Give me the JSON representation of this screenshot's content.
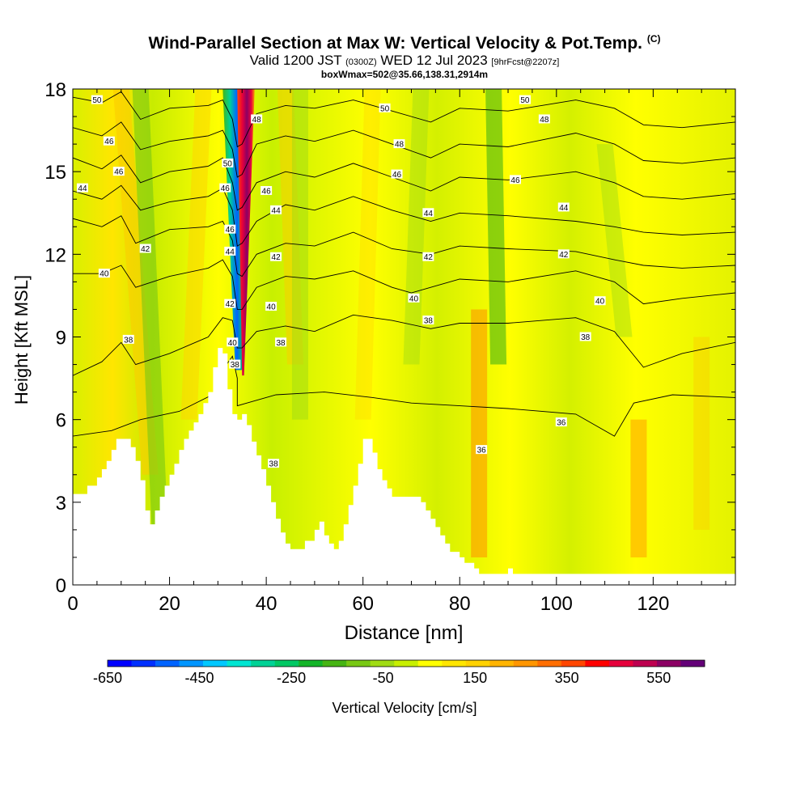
{
  "chart_data": {
    "type": "heatmap",
    "title": "Wind-Parallel Section at Max W: Vertical Velocity & Pot.Temp.",
    "title_mark": "(C)",
    "subtitle": {
      "valid": "Valid 1200 JST",
      "utc": "(0300Z)",
      "date": "WED 12 Jul 2023",
      "fcst": "[9hrFcst@2207z]"
    },
    "box_info": "boxWmax=502@35.66,138.31,2914m",
    "xlabel": "Distance [nm]",
    "ylabel": "Height [Kft MSL]",
    "xlim": [
      0,
      137
    ],
    "ylim": [
      0,
      18
    ],
    "x_ticks": [
      "0",
      "20",
      "40",
      "60",
      "80",
      "100",
      "120"
    ],
    "y_ticks": [
      "0",
      "3",
      "6",
      "9",
      "12",
      "15",
      "18"
    ],
    "colorbar": {
      "label": "Vertical Velocity [cm/s]",
      "range": [
        -650,
        650
      ],
      "tick_labels": [
        "-650",
        "-450",
        "-250",
        "-50",
        "150",
        "350",
        "550"
      ],
      "colors": [
        "#0000ff",
        "#0030ff",
        "#0064ff",
        "#0096ff",
        "#00c8ff",
        "#00e6d2",
        "#00d296",
        "#00c864",
        "#14b428",
        "#46b414",
        "#78c814",
        "#a0dc14",
        "#c8f000",
        "#ffff00",
        "#ffe600",
        "#ffd200",
        "#ffb400",
        "#ff9600",
        "#ff6e00",
        "#ff4600",
        "#ff0000",
        "#e6003c",
        "#be0050",
        "#8c0064",
        "#640078"
      ]
    },
    "theta_contours": [
      {
        "label": "36",
        "x": [
          0,
          8,
          14,
          22,
          30,
          31,
          33,
          34,
          34,
          36,
          42,
          52,
          62,
          70,
          80,
          90,
          104,
          112,
          116,
          124,
          137
        ],
        "y": [
          5.4,
          5.6,
          6.0,
          6.3,
          7.0,
          7.8,
          8.3,
          7.5,
          6.5,
          6.6,
          6.9,
          7.0,
          6.8,
          6.6,
          6.5,
          6.4,
          6.2,
          5.4,
          6.6,
          6.9,
          6.8
        ]
      },
      {
        "label": "38",
        "x": [
          0,
          6,
          10,
          13,
          20,
          28,
          31,
          33,
          34,
          35,
          38,
          44,
          50,
          58,
          66,
          74,
          80,
          90,
          104,
          112,
          118,
          126,
          137
        ],
        "y": [
          7.6,
          8.1,
          8.8,
          8.0,
          8.4,
          9.0,
          9.7,
          9.6,
          8.6,
          8.6,
          9.2,
          9.4,
          9.2,
          9.8,
          9.6,
          9.3,
          9.5,
          9.5,
          9.7,
          9.2,
          7.9,
          8.4,
          8.8
        ]
      },
      {
        "label": "40",
        "x": [
          0,
          6,
          10,
          13,
          20,
          28,
          31,
          33,
          34,
          35,
          38,
          44,
          50,
          58,
          66,
          70,
          74,
          80,
          90,
          104,
          112,
          118,
          126,
          137
        ],
        "y": [
          11.3,
          11.3,
          11.6,
          10.8,
          11.2,
          11.5,
          11.8,
          11.2,
          10.0,
          10.0,
          10.8,
          11.2,
          11.1,
          11.4,
          10.8,
          10.6,
          10.8,
          11.1,
          11.0,
          11.4,
          11.0,
          10.2,
          10.4,
          10.6
        ]
      },
      {
        "label": "42",
        "x": [
          0,
          6,
          10,
          13,
          20,
          28,
          31,
          33,
          34,
          35,
          38,
          44,
          50,
          58,
          66,
          74,
          80,
          90,
          104,
          112,
          118,
          126,
          137
        ],
        "y": [
          13.3,
          13.0,
          13.4,
          12.4,
          12.9,
          13.0,
          13.2,
          12.5,
          11.3,
          11.2,
          12.0,
          12.4,
          12.3,
          12.8,
          12.2,
          12.0,
          12.3,
          12.2,
          12.1,
          11.8,
          11.6,
          11.5,
          11.6
        ]
      },
      {
        "label": "44",
        "x": [
          0,
          6,
          10,
          14,
          20,
          28,
          31,
          33,
          34,
          35,
          38,
          44,
          50,
          58,
          66,
          74,
          80,
          90,
          104,
          112,
          118,
          126,
          137
        ],
        "y": [
          14.3,
          14.0,
          14.5,
          13.6,
          13.9,
          14.1,
          14.4,
          13.6,
          12.3,
          12.4,
          13.2,
          13.8,
          13.6,
          14.1,
          13.6,
          13.2,
          13.5,
          13.4,
          13.2,
          13.0,
          12.8,
          12.7,
          12.8
        ]
      },
      {
        "label": "46",
        "x": [
          0,
          6,
          10,
          14,
          20,
          28,
          31,
          33,
          34,
          35,
          38,
          44,
          50,
          58,
          66,
          74,
          80,
          90,
          104,
          112,
          118,
          126,
          137
        ],
        "y": [
          15.5,
          15.1,
          15.6,
          14.6,
          15.0,
          15.2,
          15.5,
          14.6,
          13.6,
          13.7,
          14.6,
          15.0,
          14.8,
          15.3,
          14.8,
          14.3,
          14.8,
          14.7,
          15.0,
          14.6,
          14.1,
          14.0,
          14.2
        ]
      },
      {
        "label": "48",
        "x": [
          0,
          6,
          10,
          14,
          20,
          28,
          31,
          33,
          34,
          35,
          38,
          44,
          50,
          58,
          66,
          74,
          80,
          90,
          104,
          112,
          118,
          126,
          137
        ],
        "y": [
          16.6,
          16.3,
          16.8,
          15.8,
          16.1,
          16.3,
          16.5,
          15.8,
          14.8,
          14.9,
          16.0,
          16.3,
          16.1,
          16.5,
          16.0,
          15.5,
          16.0,
          15.9,
          16.4,
          16.0,
          15.4,
          15.3,
          15.5
        ]
      },
      {
        "label": "50",
        "x": [
          0,
          6,
          10,
          14,
          20,
          28,
          31,
          33,
          34,
          35,
          38,
          44,
          50,
          58,
          66,
          74,
          80,
          90,
          104,
          112,
          118,
          126,
          137
        ],
        "y": [
          17.7,
          17.5,
          17.9,
          16.9,
          17.3,
          17.4,
          17.6,
          16.9,
          15.9,
          16.0,
          17.1,
          17.4,
          17.3,
          17.6,
          17.2,
          16.8,
          17.3,
          17.2,
          17.6,
          17.3,
          16.7,
          16.6,
          16.8
        ]
      }
    ],
    "contour_labels": [
      {
        "text": "50",
        "x": 5,
        "y": 17.6
      },
      {
        "text": "46",
        "x": 7.5,
        "y": 16.1
      },
      {
        "text": "46",
        "x": 9.5,
        "y": 15.0
      },
      {
        "text": "44",
        "x": 2,
        "y": 14.4
      },
      {
        "text": "42",
        "x": 15,
        "y": 12.2
      },
      {
        "text": "40",
        "x": 6.5,
        "y": 11.3
      },
      {
        "text": "38",
        "x": 11.5,
        "y": 8.9
      },
      {
        "text": "48",
        "x": 38,
        "y": 16.9
      },
      {
        "text": "50",
        "x": 32,
        "y": 15.3
      },
      {
        "text": "46",
        "x": 31.5,
        "y": 14.4
      },
      {
        "text": "46",
        "x": 40,
        "y": 14.3
      },
      {
        "text": "44",
        "x": 42,
        "y": 13.6
      },
      {
        "text": "46",
        "x": 32.5,
        "y": 12.9
      },
      {
        "text": "44",
        "x": 32.5,
        "y": 12.1
      },
      {
        "text": "42",
        "x": 42,
        "y": 11.9
      },
      {
        "text": "42",
        "x": 32.5,
        "y": 10.2
      },
      {
        "text": "40",
        "x": 41,
        "y": 10.1
      },
      {
        "text": "40",
        "x": 33,
        "y": 8.8
      },
      {
        "text": "38",
        "x": 43,
        "y": 8.8
      },
      {
        "text": "38",
        "x": 33.5,
        "y": 8.0
      },
      {
        "text": "38",
        "x": 41.5,
        "y": 4.4
      },
      {
        "text": "50",
        "x": 64.5,
        "y": 17.3
      },
      {
        "text": "48",
        "x": 67.5,
        "y": 16.0
      },
      {
        "text": "46",
        "x": 67,
        "y": 14.9
      },
      {
        "text": "44",
        "x": 73.5,
        "y": 13.5
      },
      {
        "text": "42",
        "x": 73.5,
        "y": 11.9
      },
      {
        "text": "40",
        "x": 70.5,
        "y": 10.4
      },
      {
        "text": "38",
        "x": 73.5,
        "y": 9.6
      },
      {
        "text": "50",
        "x": 93.5,
        "y": 17.6
      },
      {
        "text": "48",
        "x": 97.5,
        "y": 16.9
      },
      {
        "text": "46",
        "x": 91.5,
        "y": 14.7
      },
      {
        "text": "44",
        "x": 101.5,
        "y": 13.7
      },
      {
        "text": "42",
        "x": 101.5,
        "y": 12.0
      },
      {
        "text": "40",
        "x": 109,
        "y": 10.3
      },
      {
        "text": "38",
        "x": 106,
        "y": 9.0
      },
      {
        "text": "36",
        "x": 101,
        "y": 5.9
      },
      {
        "text": "36",
        "x": 84.5,
        "y": 4.9
      }
    ],
    "terrain": {
      "x": [
        0,
        3,
        3,
        5,
        5,
        6,
        6,
        7,
        7,
        8,
        8,
        9,
        9,
        10,
        10,
        12,
        12,
        13,
        13,
        14,
        14,
        15,
        15,
        16,
        16,
        17,
        17,
        18,
        18,
        19,
        19,
        20,
        20,
        21,
        21,
        22,
        22,
        23,
        23,
        24,
        24,
        25,
        25,
        26,
        26,
        27,
        27,
        28,
        28,
        29,
        29,
        30,
        30,
        31,
        31,
        32,
        32,
        33,
        33,
        34,
        34,
        35,
        35,
        36,
        36,
        37,
        37,
        38,
        38,
        39,
        39,
        40,
        40,
        41,
        41,
        42,
        42,
        43,
        43,
        44,
        44,
        45,
        45,
        46,
        46,
        48,
        48,
        50,
        50,
        51,
        51,
        52,
        52,
        53,
        53,
        54,
        54,
        55,
        55,
        56,
        56,
        57,
        57,
        58,
        58,
        59,
        59,
        60,
        60,
        62,
        62,
        63,
        63,
        64,
        64,
        65,
        65,
        66,
        66,
        72,
        72,
        73,
        73,
        74,
        74,
        75,
        75,
        76,
        76,
        77,
        77,
        78,
        78,
        80,
        80,
        81,
        81,
        83,
        83,
        84,
        84,
        90,
        90,
        91,
        91,
        95,
        95,
        137
      ],
      "y": [
        3.3,
        3.3,
        3.6,
        3.6,
        3.9,
        3.9,
        4.2,
        4.2,
        4.5,
        4.5,
        4.9,
        4.9,
        5.3,
        5.3,
        5.3,
        5.3,
        5.0,
        5.0,
        4.5,
        4.5,
        3.8,
        3.8,
        2.7,
        2.7,
        2.2,
        2.2,
        2.7,
        2.7,
        3.2,
        3.2,
        3.6,
        3.6,
        4.0,
        4.0,
        4.4,
        4.4,
        4.9,
        4.9,
        5.3,
        5.3,
        5.6,
        5.6,
        5.9,
        5.9,
        6.2,
        6.2,
        6.6,
        6.6,
        7.0,
        7.0,
        7.9,
        7.9,
        8.6,
        8.6,
        8.4,
        8.4,
        7.1,
        7.1,
        6.2,
        6.2,
        6.0,
        6.0,
        6.2,
        6.2,
        5.8,
        5.8,
        5.2,
        5.2,
        4.7,
        4.7,
        4.2,
        4.2,
        3.6,
        3.6,
        3.0,
        3.0,
        2.4,
        2.4,
        1.9,
        1.9,
        1.5,
        1.5,
        1.3,
        1.3,
        1.3,
        1.3,
        1.6,
        1.6,
        2.0,
        2.0,
        2.3,
        2.3,
        1.8,
        1.8,
        1.5,
        1.5,
        1.3,
        1.3,
        1.6,
        1.6,
        2.2,
        2.2,
        2.9,
        2.9,
        3.6,
        3.6,
        4.4,
        4.4,
        5.3,
        5.3,
        4.8,
        4.8,
        4.2,
        4.2,
        3.8,
        3.8,
        3.5,
        3.5,
        3.2,
        3.2,
        3.0,
        3.0,
        2.7,
        2.7,
        2.4,
        2.4,
        2.1,
        2.1,
        1.8,
        1.8,
        1.5,
        1.5,
        1.2,
        1.2,
        1.0,
        1.0,
        0.8,
        0.8,
        0.6,
        0.6,
        0.4,
        0.4,
        0.6,
        0.6,
        0.4,
        0.4,
        0.4,
        0.4,
        0.3,
        0.3
      ]
    }
  }
}
